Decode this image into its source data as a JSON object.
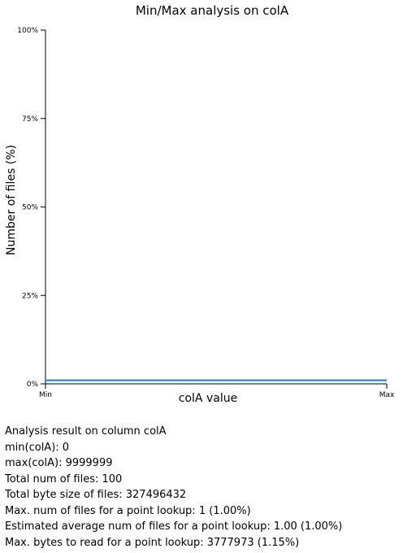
{
  "chart_data": {
    "type": "line",
    "title": "Min/Max analysis on colA",
    "xlabel": "colA value",
    "ylabel": "Number of files (%)",
    "x_ticks": [
      "Min",
      "Max"
    ],
    "y_ticks": [
      "0%",
      "25%",
      "50%",
      "75%",
      "100%"
    ],
    "ylim": [
      0,
      100
    ],
    "grid": false,
    "legend": "none",
    "series": [
      {
        "x": [
          "Min",
          "Max"
        ],
        "values": [
          1,
          1
        ],
        "color": "#1f77d4"
      }
    ]
  },
  "summary": {
    "heading": "Analysis result on column colA",
    "lines": [
      "min(colA): 0",
      "max(colA): 9999999",
      "Total num of files: 100",
      "Total byte size of files: 327496432",
      "Max. num of files for a point lookup: 1 (1.00%)",
      "Estimated average num of files for a point lookup: 1.00 (1.00%)",
      "Max. bytes to read for a point lookup: 3777973 (1.15%)"
    ]
  }
}
